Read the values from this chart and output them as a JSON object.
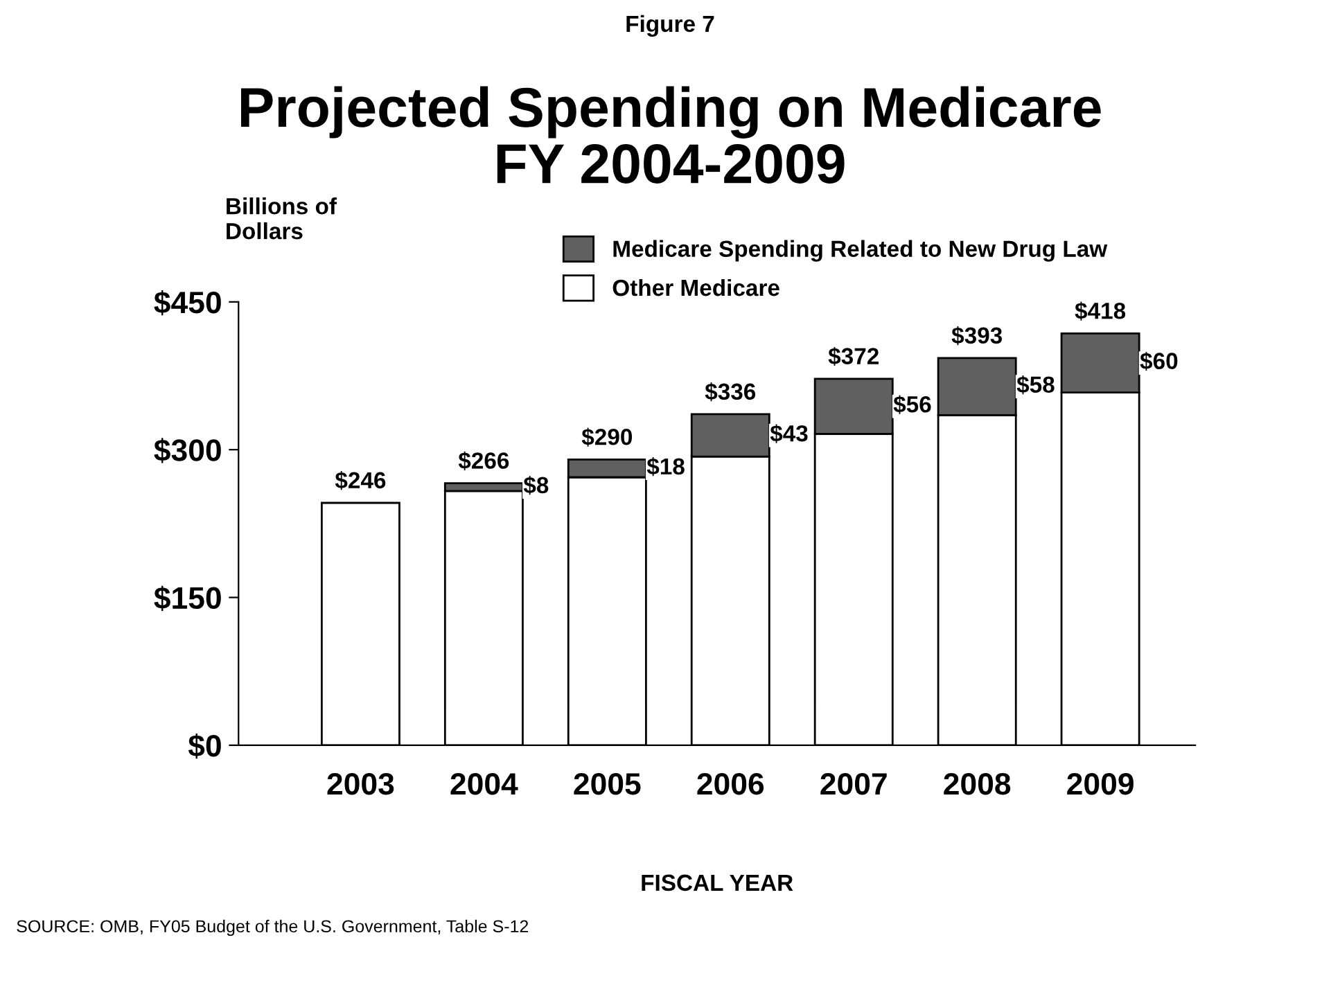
{
  "chart_data": {
    "type": "bar",
    "subtitle": "Figure 7",
    "title": "Projected Spending on Medicare\nFY 2004-2009",
    "ylabel": "Billions of\nDollars",
    "xlabel": "FISCAL YEAR",
    "categories": [
      "2003",
      "2004",
      "2005",
      "2006",
      "2007",
      "2008",
      "2009"
    ],
    "stacked": true,
    "series": [
      {
        "name": "Other Medicare",
        "color": "#ffffff",
        "values": [
          246,
          258,
          272,
          293,
          316,
          335,
          358
        ]
      },
      {
        "name": "Medicare Spending Related to New Drug Law",
        "color": "#606060",
        "values": [
          null,
          8,
          18,
          43,
          56,
          58,
          60
        ],
        "value_labels": [
          null,
          "$8",
          "$18",
          "$43",
          "$56",
          "$58",
          "$60"
        ]
      }
    ],
    "totals": [
      "$246",
      "$266",
      "$290",
      "$336",
      "$372",
      "$393",
      "$418"
    ],
    "ylim": [
      0,
      450
    ],
    "yticks": [
      {
        "value": 0,
        "label": "$0"
      },
      {
        "value": 150,
        "label": "$150"
      },
      {
        "value": 300,
        "label": "$300"
      },
      {
        "value": 450,
        "label": "$450"
      }
    ],
    "grid": false,
    "legend": "top",
    "annotations": [
      "SOURCE: OMB, FY05 Budget of the U.S. Government, Table S-12"
    ]
  }
}
